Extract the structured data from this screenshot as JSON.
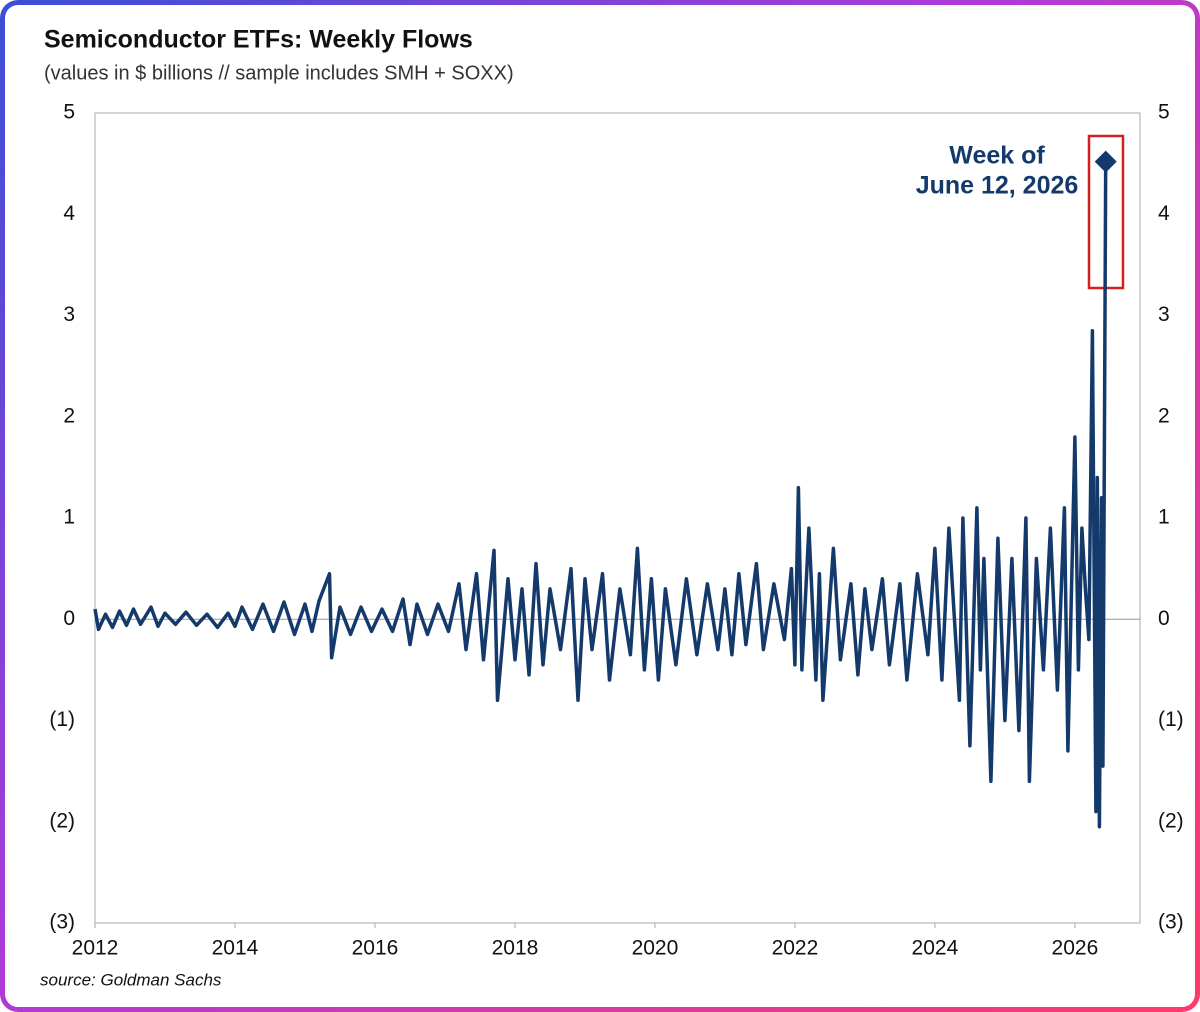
{
  "chart_data": {
    "type": "line",
    "title": "Semiconductor ETFs: Weekly Flows",
    "subtitle": "(values in $ billions // sample includes SMH + SOXX)",
    "source": "source: Goldman Sachs",
    "annotation": [
      "Week of",
      "June 12, 2026"
    ],
    "color": "#143a6b",
    "xlim": [
      2012,
      2026.93
    ],
    "xticks": [
      2012,
      2014,
      2016,
      2018,
      2020,
      2022,
      2024,
      2026
    ],
    "ylim": [
      -3,
      5
    ],
    "yticks": [
      {
        "value": -3,
        "label": "(3)"
      },
      {
        "value": -2,
        "label": "(2)"
      },
      {
        "value": -1,
        "label": "(1)"
      },
      0,
      1,
      2,
      3,
      4,
      5
    ],
    "x": [
      2012.0,
      2012.05,
      2012.15,
      2012.25,
      2012.35,
      2012.45,
      2012.55,
      2012.65,
      2012.8,
      2012.9,
      2013.0,
      2013.15,
      2013.3,
      2013.45,
      2013.6,
      2013.75,
      2013.9,
      2014.0,
      2014.1,
      2014.25,
      2014.4,
      2014.55,
      2014.7,
      2014.85,
      2015.0,
      2015.1,
      2015.2,
      2015.35,
      2015.38,
      2015.5,
      2015.65,
      2015.8,
      2015.95,
      2016.1,
      2016.25,
      2016.4,
      2016.5,
      2016.6,
      2016.75,
      2016.9,
      2017.05,
      2017.2,
      2017.3,
      2017.45,
      2017.55,
      2017.7,
      2017.75,
      2017.9,
      2018.0,
      2018.1,
      2018.2,
      2018.3,
      2018.4,
      2018.5,
      2018.65,
      2018.8,
      2018.9,
      2019.0,
      2019.1,
      2019.25,
      2019.35,
      2019.5,
      2019.65,
      2019.75,
      2019.85,
      2019.95,
      2020.05,
      2020.15,
      2020.3,
      2020.45,
      2020.6,
      2020.75,
      2020.9,
      2021.0,
      2021.1,
      2021.2,
      2021.3,
      2021.45,
      2021.55,
      2021.7,
      2021.85,
      2021.95,
      2022.0,
      2022.05,
      2022.1,
      2022.2,
      2022.3,
      2022.35,
      2022.4,
      2022.55,
      2022.65,
      2022.8,
      2022.9,
      2023.0,
      2023.1,
      2023.25,
      2023.35,
      2023.5,
      2023.6,
      2023.75,
      2023.9,
      2024.0,
      2024.1,
      2024.2,
      2024.35,
      2024.4,
      2024.5,
      2024.6,
      2024.65,
      2024.7,
      2024.8,
      2024.9,
      2025.0,
      2025.1,
      2025.2,
      2025.3,
      2025.35,
      2025.45,
      2025.55,
      2025.65,
      2025.75,
      2025.85,
      2025.9,
      2026.0,
      2026.05,
      2026.1,
      2026.15,
      2026.2,
      2026.25,
      2026.3,
      2026.32,
      2026.35,
      2026.38,
      2026.4,
      2026.44
    ],
    "values": [
      0.1,
      -0.1,
      0.05,
      -0.08,
      0.08,
      -0.06,
      0.1,
      -0.05,
      0.12,
      -0.07,
      0.06,
      -0.05,
      0.07,
      -0.06,
      0.05,
      -0.08,
      0.06,
      -0.07,
      0.12,
      -0.1,
      0.15,
      -0.12,
      0.17,
      -0.15,
      0.15,
      -0.12,
      0.18,
      0.45,
      -0.38,
      0.12,
      -0.15,
      0.12,
      -0.12,
      0.1,
      -0.12,
      0.2,
      -0.25,
      0.15,
      -0.15,
      0.15,
      -0.12,
      0.35,
      -0.3,
      0.45,
      -0.4,
      0.68,
      -0.8,
      0.4,
      -0.4,
      0.3,
      -0.55,
      0.55,
      -0.45,
      0.3,
      -0.3,
      0.5,
      -0.8,
      0.4,
      -0.3,
      0.45,
      -0.6,
      0.3,
      -0.35,
      0.7,
      -0.5,
      0.4,
      -0.6,
      0.3,
      -0.45,
      0.4,
      -0.35,
      0.35,
      -0.3,
      0.3,
      -0.35,
      0.45,
      -0.25,
      0.55,
      -0.3,
      0.35,
      -0.2,
      0.5,
      -0.45,
      1.3,
      -0.5,
      0.9,
      -0.6,
      0.45,
      -0.8,
      0.7,
      -0.4,
      0.35,
      -0.55,
      0.3,
      -0.3,
      0.4,
      -0.45,
      0.35,
      -0.6,
      0.45,
      -0.35,
      0.7,
      -0.6,
      0.9,
      -0.8,
      1.0,
      -1.25,
      1.1,
      -0.5,
      0.6,
      -1.6,
      0.8,
      -1.0,
      0.6,
      -1.1,
      1.0,
      -1.6,
      0.6,
      -0.5,
      0.9,
      -0.7,
      1.1,
      -1.3,
      1.8,
      -0.5,
      0.9,
      0.3,
      -0.2,
      2.85,
      -1.9,
      1.4,
      -2.05,
      1.2,
      -1.45,
      4.52
    ]
  }
}
